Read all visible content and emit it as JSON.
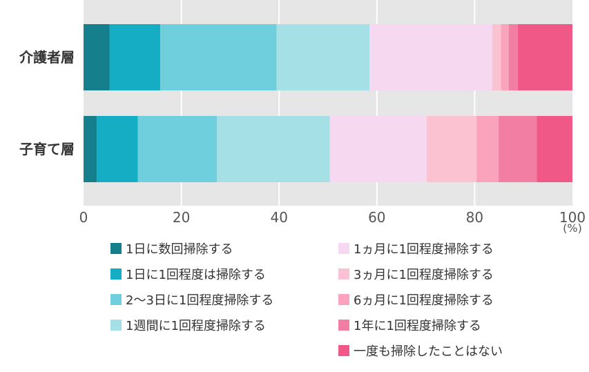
{
  "chart_data": {
    "type": "bar",
    "orientation": "horizontal",
    "stacked": true,
    "categories": [
      "介護者層",
      "子育て層"
    ],
    "xlim": [
      0,
      100
    ],
    "xticks": [
      "0",
      "20",
      "40",
      "60",
      "80",
      "100"
    ],
    "unit": "(%)",
    "grid": true,
    "legend_placement": "bottom",
    "series": [
      {
        "name": "1日に数回掃除する",
        "color": "#167f8c",
        "values": [
          5.3,
          2.7
        ]
      },
      {
        "name": "1日に1回程度は掃除する",
        "color": "#14adc3",
        "values": [
          10.4,
          8.4
        ]
      },
      {
        "name": "2〜3日に1回程度掃除する",
        "color": "#70cfdc",
        "values": [
          23.8,
          16.2
        ]
      },
      {
        "name": "1週間に1回程度掃除する",
        "color": "#a4e0e6",
        "values": [
          19.0,
          23.1
        ]
      },
      {
        "name": "1ヵ月に1回程度掃除する",
        "color": "#f7d8f1",
        "values": [
          25.1,
          19.8
        ]
      },
      {
        "name": "3ヵ月に1回程度掃除する",
        "color": "#fbc3d1",
        "values": [
          1.8,
          10.2
        ]
      },
      {
        "name": "6ヵ月に1回程度掃除する",
        "color": "#f9a3bc",
        "values": [
          1.6,
          4.5
        ]
      },
      {
        "name": "1年に1回程度掃除する",
        "color": "#f27fa3",
        "values": [
          1.8,
          7.8
        ]
      },
      {
        "name": "一度も掃除したことはない",
        "color": "#f05987",
        "values": [
          11.2,
          7.3
        ]
      }
    ],
    "background_color": "#e6e6e6",
    "grid_color": "#ffffff"
  }
}
